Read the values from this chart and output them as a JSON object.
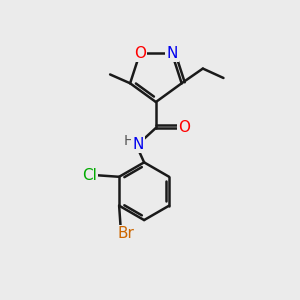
{
  "background_color": "#ebebeb",
  "bond_color": "#1a1a1a",
  "bond_width": 1.8,
  "atom_colors": {
    "O": "#ff0000",
    "N": "#0000ee",
    "Cl": "#00aa00",
    "Br": "#cc6600"
  },
  "fig_w": 3.0,
  "fig_h": 3.0,
  "dpi": 100
}
